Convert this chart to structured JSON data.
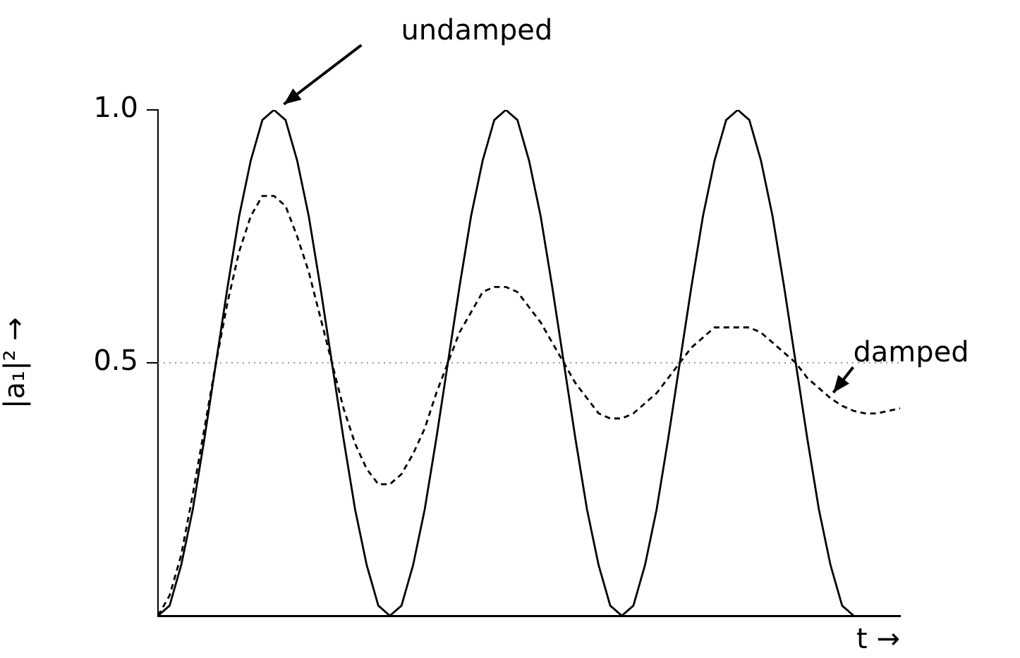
{
  "chart_data": {
    "type": "line",
    "ylabel": "|a₁|² →",
    "xlabel": "t →",
    "categories": [
      null,
      null,
      null,
      null,
      null,
      null,
      null,
      null,
      null,
      null,
      null,
      null,
      null,
      null,
      null,
      null,
      null,
      null,
      null,
      null,
      null,
      null,
      null,
      null,
      null,
      null,
      null,
      null,
      null,
      null,
      null,
      null,
      null,
      null,
      null,
      null,
      null,
      null,
      null,
      null,
      null,
      null,
      null,
      null,
      null,
      null,
      null,
      null,
      null,
      null,
      null,
      null,
      null,
      null,
      null,
      null,
      null,
      null,
      null,
      null,
      null,
      null,
      null,
      null,
      null
    ],
    "series": [
      {
        "name": "undamped",
        "color": "#000000",
        "line_style": "solid",
        "values": [
          0,
          0.02,
          0.1,
          0.21,
          0.35,
          0.5,
          0.65,
          0.79,
          0.9,
          0.98,
          1,
          0.98,
          0.9,
          0.79,
          0.65,
          0.5,
          0.35,
          0.21,
          0.1,
          0.02,
          0,
          0.02,
          0.1,
          0.21,
          0.35,
          0.5,
          0.65,
          0.79,
          0.9,
          0.98,
          1,
          0.98,
          0.9,
          0.79,
          0.65,
          0.5,
          0.35,
          0.21,
          0.1,
          0.02,
          0,
          0.02,
          0.1,
          0.21,
          0.35,
          0.5,
          0.65,
          0.79,
          0.9,
          0.98,
          1,
          0.98,
          0.9,
          0.79,
          0.65,
          0.5,
          0.35,
          0.21,
          0.1,
          0.02,
          0,
          null,
          null,
          null,
          null
        ]
      },
      {
        "name": "damped",
        "color": "#000000",
        "line_style": "dashed",
        "values": [
          0,
          0.04,
          0.12,
          0.24,
          0.37,
          0.5,
          0.62,
          0.72,
          0.79,
          0.83,
          0.83,
          0.81,
          0.75,
          0.68,
          0.59,
          0.5,
          0.41,
          0.34,
          0.29,
          0.26,
          0.26,
          0.28,
          0.32,
          0.37,
          0.44,
          0.5,
          0.56,
          0.6,
          0.64,
          0.65,
          0.65,
          0.64,
          0.61,
          0.58,
          0.54,
          0.5,
          0.46,
          0.43,
          0.4,
          0.39,
          0.39,
          0.4,
          0.42,
          0.44,
          0.47,
          0.5,
          0.53,
          0.55,
          0.57,
          0.57,
          0.57,
          0.57,
          0.56,
          0.54,
          0.52,
          0.5,
          0.47,
          0.45,
          0.43,
          0.415,
          0.405,
          0.4,
          0.4,
          0.405,
          0.41
        ]
      }
    ],
    "ylim": [
      0,
      1
    ],
    "yticks": [
      {
        "value": 0.5,
        "label": "0.5"
      },
      {
        "value": 1,
        "label": "1.0"
      }
    ],
    "tick_labels": "y",
    "grid": false,
    "legend": false,
    "marker": "none",
    "ref_lines": [
      {
        "axis": "y",
        "value": 0.5,
        "color": "#999999",
        "line_style": "dotted"
      }
    ]
  }
}
